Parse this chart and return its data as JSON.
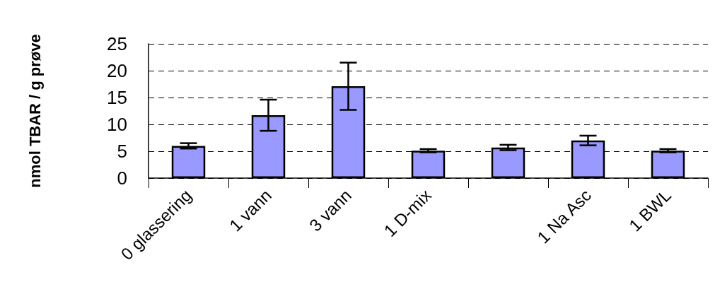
{
  "chart_data": {
    "type": "bar",
    "ylabel": "nmol TBAR / g prøve",
    "categories": [
      "0 glassering",
      "1 vann",
      "3 vann",
      "1 D-mix",
      null,
      "1 Na Asc",
      "1 BWL"
    ],
    "values": [
      6.0,
      11.7,
      17.1,
      5.1,
      5.7,
      7.0,
      5.1
    ],
    "errors": [
      0.5,
      2.9,
      4.4,
      0.3,
      0.5,
      0.9,
      0.3
    ],
    "color": "#9999ff",
    "ylim": [
      0,
      25
    ],
    "yticks": [
      0,
      5,
      10,
      15,
      20,
      25
    ],
    "grid": "y",
    "legend": false
  }
}
